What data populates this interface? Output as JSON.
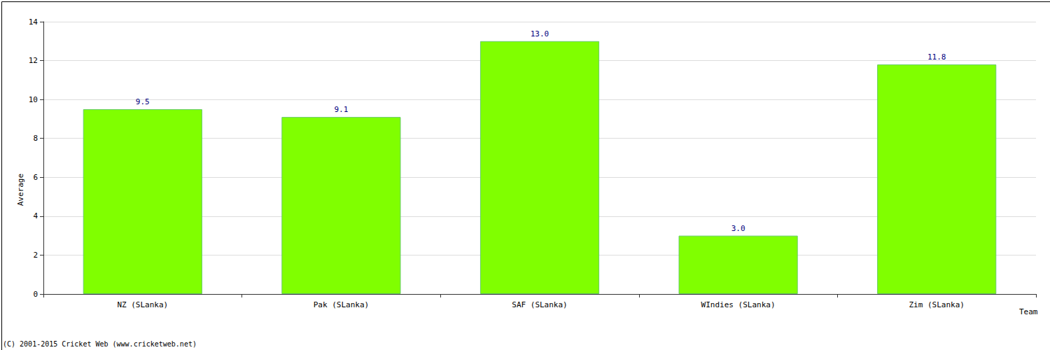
{
  "chart_data": {
    "type": "bar",
    "categories": [
      "NZ (SLanka)",
      "Pak (SLanka)",
      "SAF (SLanka)",
      "WIndies (SLanka)",
      "Zim (SLanka)"
    ],
    "values": [
      9.5,
      9.1,
      13.0,
      3.0,
      11.8
    ],
    "value_labels": [
      "9.5",
      "9.1",
      "13.0",
      "3.0",
      "11.8"
    ],
    "color": "#80ff00",
    "x_label": "Team",
    "y_label": "Average",
    "annotations": [
      "(C) 2001-2015 Cricket Web (www.cricketweb.net)"
    ],
    "ylim": [
      0,
      14
    ],
    "yticks": [
      0,
      2,
      4,
      6,
      8,
      10,
      12,
      14
    ],
    "grid": true,
    "data_labels": true
  }
}
